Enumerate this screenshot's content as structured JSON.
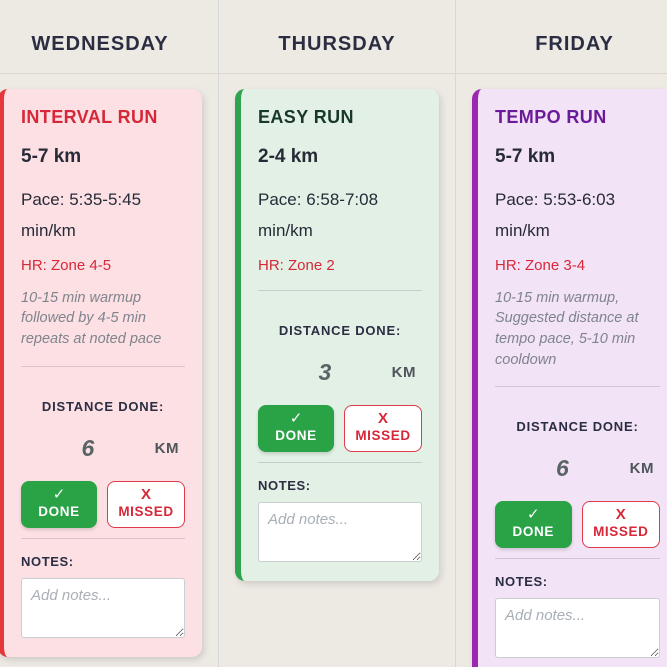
{
  "theme": {
    "page_background": "#EDE9E3",
    "column_divider": "#D6D9DC",
    "header_line": "#DCD6CF",
    "header_text": "#2B2D42",
    "body_text": "#272B38",
    "label_text": "#2B2D42",
    "hr_red": "#D62839",
    "muted_text": "#7F848C",
    "value_text": "#5A6365",
    "unit_text": "#4E555B",
    "done_green": "#29A346",
    "missed_border": "#E0394A",
    "missed_text": "#D62839",
    "textarea_border": "#C9CED3",
    "placeholder_text": "#A9AFB6"
  },
  "board": {
    "columns": [
      {
        "day": "WEDNESDAY",
        "card": {
          "title": "INTERVAL RUN",
          "distance_range": "5-7 km",
          "pace": "Pace: 5:35-5:45 min/km",
          "heart_rate": "HR: Zone 4-5",
          "description": "10-15 min warmup followed by 4-5 min repeats at noted pace",
          "distance_done_label": "DISTANCE DONE:",
          "distance_value": "6",
          "distance_unit": "KM",
          "done_icon": "✓",
          "done_label": "DONE",
          "missed_icon": "X",
          "missed_label": "MISSED",
          "notes_label": "NOTES:",
          "notes_placeholder": "Add notes...",
          "notes_value": "",
          "colors": {
            "accent": "#E5383B",
            "background": "#FCE0E4",
            "title": "#D62839"
          }
        }
      },
      {
        "day": "THURSDAY",
        "card": {
          "title": "EASY RUN",
          "distance_range": "2-4 km",
          "pace": "Pace: 6:58-7:08 min/km",
          "heart_rate": "HR: Zone 2",
          "description": "",
          "distance_done_label": "DISTANCE DONE:",
          "distance_value": "3",
          "distance_unit": "KM",
          "done_icon": "✓",
          "done_label": "DONE",
          "missed_icon": "X",
          "missed_label": "MISSED",
          "notes_label": "NOTES:",
          "notes_placeholder": "Add notes...",
          "notes_value": "",
          "colors": {
            "accent": "#2EA44F",
            "background": "#E3F0E5",
            "title": "#17382B"
          }
        }
      },
      {
        "day": "FRIDAY",
        "card": {
          "title": "TEMPO RUN",
          "distance_range": "5-7 km",
          "pace": "Pace: 5:53-6:03 min/km",
          "heart_rate": "HR: Zone 3-4",
          "description": "10-15 min warmup, Suggested distance at tempo pace, 5-10 min cooldown",
          "distance_done_label": "DISTANCE DONE:",
          "distance_value": "6",
          "distance_unit": "KM",
          "done_icon": "✓",
          "done_label": "DONE",
          "missed_icon": "X",
          "missed_label": "MISSED",
          "notes_label": "NOTES:",
          "notes_placeholder": "Add notes...",
          "notes_value": "",
          "colors": {
            "accent": "#9C27B0",
            "background": "#F2E3F6",
            "title": "#6A1B9A"
          }
        }
      }
    ]
  }
}
